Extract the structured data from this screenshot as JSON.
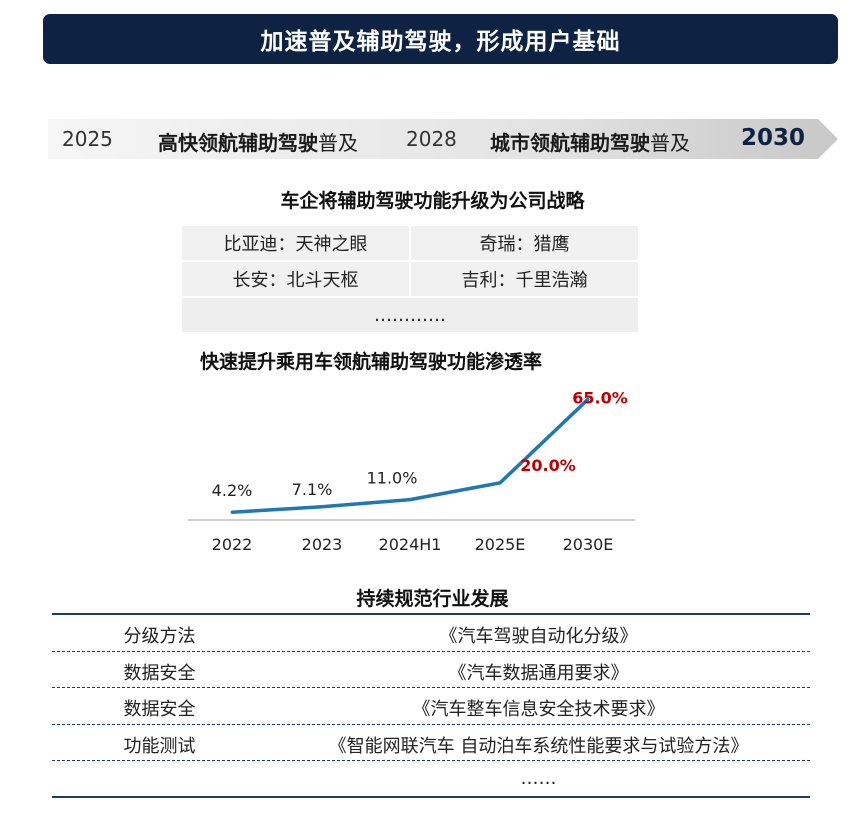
{
  "banner": {
    "title": "加速普及辅助驾驶，形成用户基础"
  },
  "timeline": {
    "year1": "2025",
    "stage1_bold": "高快领航辅助驾驶",
    "stage1_tail": "普及",
    "year2": "2028",
    "stage2_bold": "城市领航辅助驾驶",
    "stage2_tail": "普及",
    "year3": "2030"
  },
  "brands": {
    "title": "车企将辅助驾驶功能升级为公司战略",
    "cells": [
      "比亚迪：天神之眼",
      "奇瑞：猎鹰",
      "长安：北斗天枢",
      "吉利：千里浩瀚"
    ],
    "ellipsis": "…………"
  },
  "chart_data": {
    "type": "line",
    "title": "快速提升乘用车领航辅助驾驶功能渗透率",
    "categories": [
      "2022",
      "2023",
      "2024H1",
      "2025E",
      "2030E"
    ],
    "values": [
      4.2,
      7.1,
      11.0,
      20.0,
      65.0
    ],
    "labels": [
      "4.2%",
      "7.1%",
      "11.0%",
      "20.0%",
      "65.0%"
    ],
    "highlight_from_index": 3,
    "line_color": "#1f77b4",
    "highlight_color": "#c00000",
    "xlabel": "",
    "ylabel": "",
    "ylim": [
      0,
      70
    ],
    "grid": false
  },
  "standards": {
    "title": "持续规范行业发展",
    "rows": [
      {
        "category": "分级方法",
        "document": "《汽车驾驶自动化分级》"
      },
      {
        "category": "数据安全",
        "document": "《汽车数据通用要求》"
      },
      {
        "category": "数据安全",
        "document": "《汽车整车信息安全技术要求》"
      },
      {
        "category": "功能测试",
        "document": "《智能网联汽车 自动泊车系统性能要求与试验方法》"
      },
      {
        "category": "",
        "document": "……"
      }
    ]
  }
}
